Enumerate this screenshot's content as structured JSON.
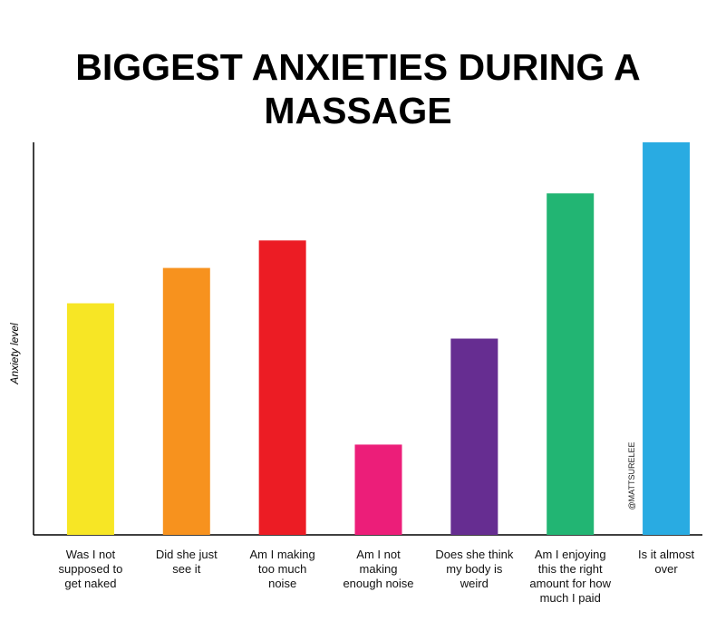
{
  "chart_data": {
    "type": "bar",
    "title": "BIGGEST ANXIETIES DURING A\nMASSAGE",
    "y_label": "Anxiety level",
    "categories": [
      "Was I not\nsupposed to\nget naked",
      "Did she just\nsee it",
      "Am I making\ntoo much\nnoise",
      "Am I not\nmaking\nenough noise",
      "Does she think\nmy body is\nweird",
      "Am I enjoying\nthis the right\namount for how\nmuch I paid",
      "Is it almost\nover"
    ],
    "values": [
      59,
      68,
      75,
      23,
      50,
      87,
      100
    ],
    "colors": [
      "#f7e625",
      "#f7921e",
      "#ec1c24",
      "#ec1e79",
      "#662d91",
      "#22b573",
      "#29abe2"
    ],
    "ylim": [
      0,
      100
    ],
    "watermark": "@MATTSURELEE"
  }
}
